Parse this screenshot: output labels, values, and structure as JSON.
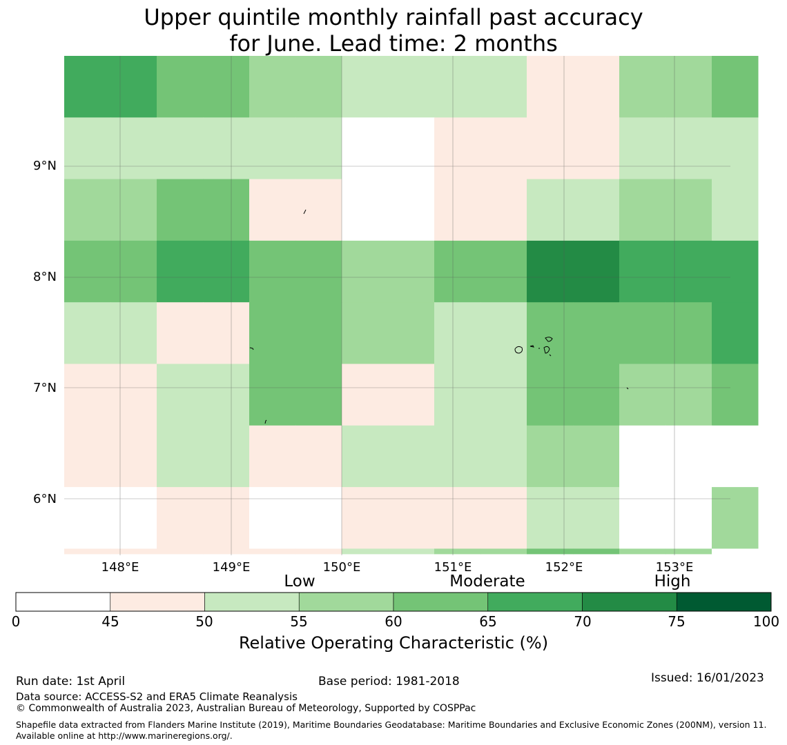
{
  "title": {
    "line1": "Upper quintile monthly rainfall past accuracy",
    "line2": "for June. Lead time: 2 months"
  },
  "map": {
    "lat_labels": [
      "9°N",
      "8°N",
      "7°N",
      "6°N"
    ],
    "lon_labels": [
      "148°E",
      "149°E",
      "150°E",
      "151°E",
      "152°E",
      "153°E"
    ],
    "legend_colors": {
      "0-45": "#ffffff",
      "45-50": "#fdebe2",
      "50-55": "#c7e9c0",
      "55-60": "#a1d99b",
      "60-65": "#74c476",
      "65-70": "#41ab5d",
      "70-75": "#238b45",
      "75-100": "#005a32"
    },
    "grid_cells_class": [
      [
        5,
        5,
        4,
        4,
        3,
        3,
        2,
        2,
        2,
        2,
        1,
        1,
        3,
        3,
        4
      ],
      [
        2,
        2,
        2,
        2,
        2,
        2,
        0,
        0,
        1,
        1,
        1,
        1,
        2,
        2,
        2
      ],
      [
        3,
        3,
        4,
        4,
        1,
        1,
        0,
        0,
        1,
        1,
        2,
        2,
        3,
        3,
        2
      ],
      [
        4,
        4,
        5,
        5,
        4,
        4,
        3,
        3,
        4,
        4,
        6,
        6,
        5,
        5,
        5
      ],
      [
        2,
        2,
        1,
        1,
        4,
        4,
        3,
        3,
        2,
        2,
        4,
        4,
        4,
        4,
        5
      ],
      [
        1,
        1,
        2,
        2,
        4,
        4,
        1,
        1,
        2,
        2,
        4,
        4,
        3,
        3,
        4
      ],
      [
        1,
        1,
        2,
        2,
        1,
        1,
        2,
        2,
        2,
        2,
        3,
        3,
        0,
        0,
        0
      ],
      [
        0,
        0,
        1,
        1,
        0,
        0,
        1,
        1,
        1,
        1,
        2,
        2,
        0,
        0,
        3
      ],
      [
        1,
        1,
        1,
        1,
        1,
        1,
        2,
        2,
        3,
        3,
        4,
        4,
        3,
        3,
        0
      ]
    ]
  },
  "colorbar": {
    "categories": [
      "Low",
      "Moderate",
      "High"
    ],
    "ticks": [
      "0",
      "45",
      "50",
      "55",
      "60",
      "65",
      "70",
      "75",
      "100"
    ],
    "title": "Relative Operating Characteristic (%)"
  },
  "footer": {
    "run_date": "Run date: 1st April",
    "base_period": "Base period: 1981-2018",
    "issued": "Issued: 16/01/2023",
    "data_source": "Data source: ACCESS-S2 and ERA5 Climate Reanalysis",
    "copyright": "© Commonwealth of Australia 2023, Australian Bureau of Meteorology, Supported by COSPPac",
    "shapefile": "Shapefile data extracted from Flanders Marine Institute (2019), Maritime Boundaries Geodatabase: Maritime Boundaries and Exclusive Economic Zones (200NM), version 11. Available online at http://www.marineregions.org/."
  }
}
